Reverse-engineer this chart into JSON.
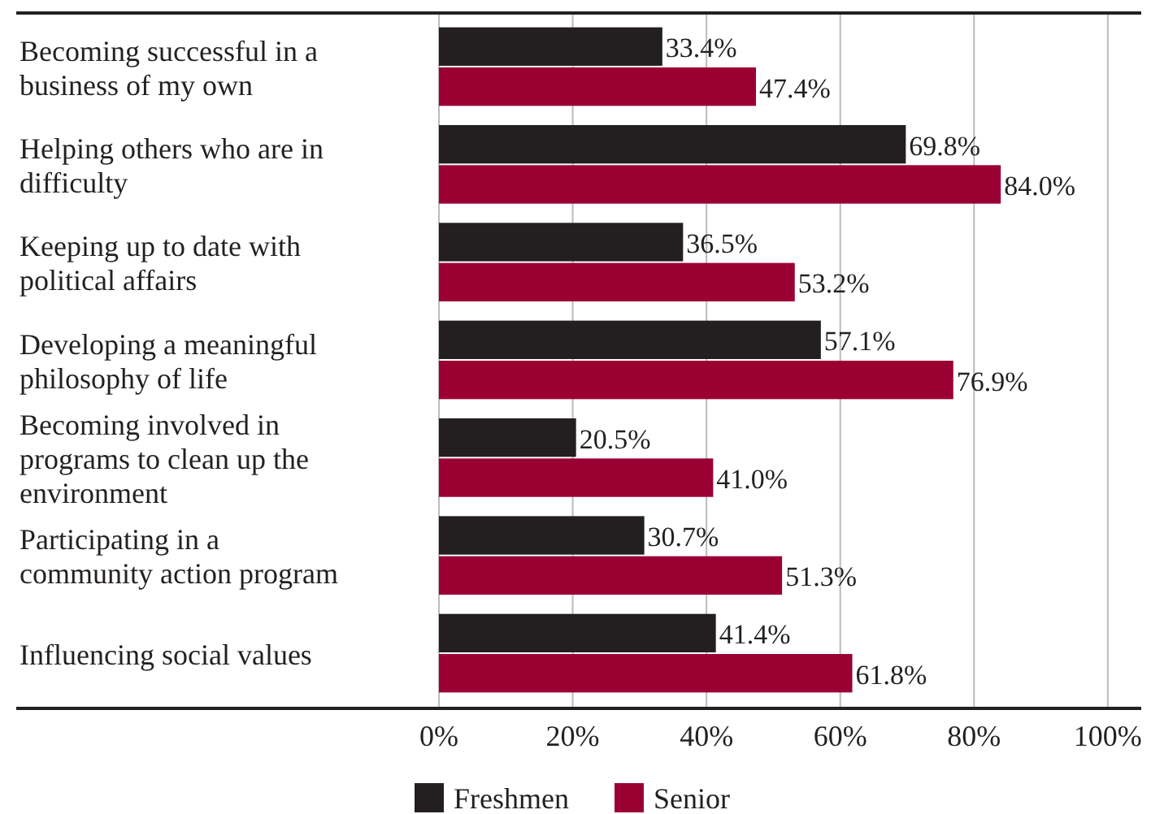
{
  "chart_data": {
    "type": "bar",
    "orientation": "horizontal",
    "categories": [
      "Becoming successful in a business of my own",
      "Helping others who are in difficulty",
      "Keeping up to date with political affairs",
      "Developing a meaningful philosophy of life",
      "Becoming involved in programs to clean up the environment",
      "Participating in a community action program",
      "Influencing social values"
    ],
    "series": [
      {
        "name": "Freshmen",
        "color": "#231f20",
        "values": [
          33.4,
          69.8,
          36.5,
          57.1,
          20.5,
          30.7,
          41.4
        ],
        "value_labels": [
          "33.4%",
          "69.8%",
          "36.5%",
          "57.1%",
          "20.5%",
          "30.7%",
          "41.4%"
        ]
      },
      {
        "name": "Senior",
        "color": "#9b0033",
        "values": [
          47.4,
          84.0,
          53.2,
          76.9,
          41.0,
          51.3,
          61.8
        ],
        "value_labels": [
          "47.4%",
          "84.0%",
          "53.2%",
          "76.9%",
          "41.0%",
          "51.3%",
          "61.8%"
        ]
      }
    ],
    "xlim": [
      0,
      105
    ],
    "xticks": [
      {
        "value": 0,
        "label": "0%"
      },
      {
        "value": 20,
        "label": "20%"
      },
      {
        "value": 40,
        "label": "40%"
      },
      {
        "value": 60,
        "label": "60%"
      },
      {
        "value": 80,
        "label": "80%"
      },
      {
        "value": 100,
        "label": "100%"
      }
    ],
    "grid": "x",
    "legend": "bottom"
  }
}
